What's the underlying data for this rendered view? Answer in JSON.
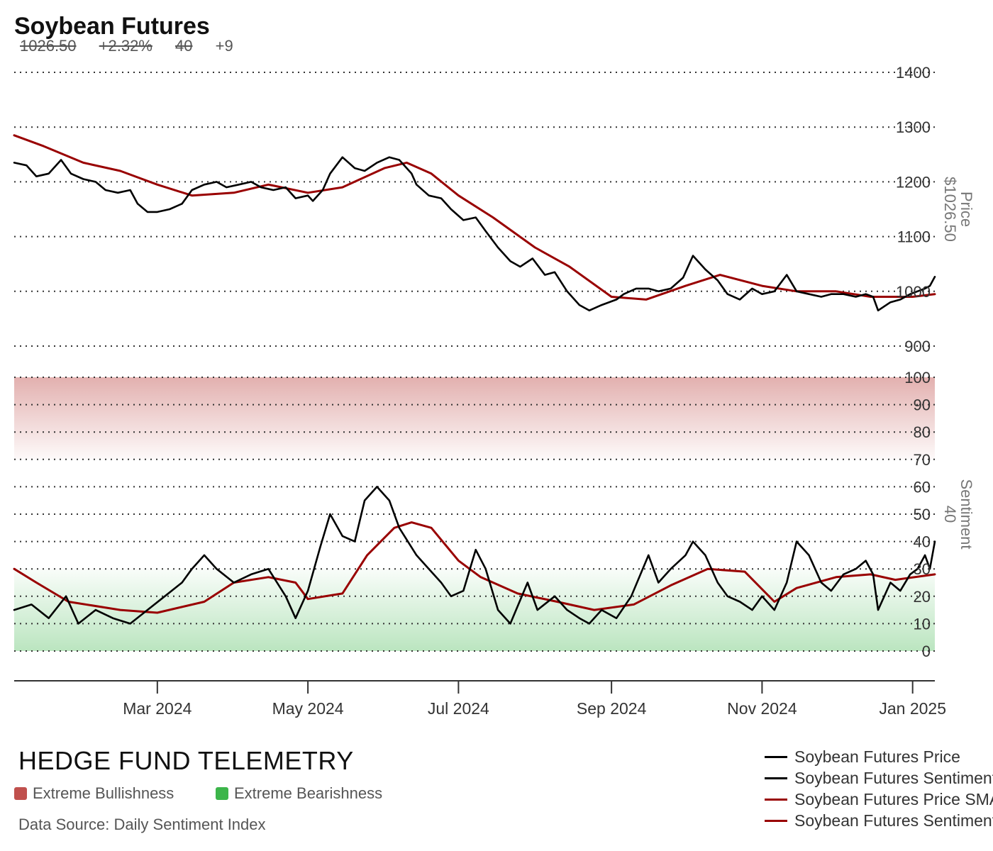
{
  "header": {
    "title": "Soybean Futures",
    "price": "1026.50",
    "change": "+2.32%",
    "sentiment": "40",
    "sentiment_change": "+9"
  },
  "footer": {
    "brand": "HEDGE FUND TELEMETRY",
    "bull_zone_label": "Extreme Bullishness",
    "bear_zone_label": "Extreme Bearishness",
    "source": "Data Source: Daily Sentiment Index"
  },
  "colors": {
    "price": "#000000",
    "sentiment": "#000000",
    "sma": "#990000",
    "bull_zone": "#c0504d",
    "bear_zone": "#3cb54a"
  },
  "chart_data": [
    {
      "type": "line",
      "panel": "price",
      "ylabel": "Price",
      "last_value_label": "$1026.50",
      "ylim": [
        900,
        1400
      ],
      "yticks": [
        900,
        1000,
        1100,
        1200,
        1300,
        1400
      ],
      "grid": true,
      "x_range": [
        "2024-01-03",
        "2025-01-10"
      ],
      "xticks": [
        {
          "date": "2024-03-01",
          "label": "Mar 2024"
        },
        {
          "date": "2024-05-01",
          "label": "May 2024"
        },
        {
          "date": "2024-07-01",
          "label": "Jul 2024"
        },
        {
          "date": "2024-09-01",
          "label": "Sep 2024"
        },
        {
          "date": "2024-11-01",
          "label": "Nov 2024"
        },
        {
          "date": "2025-01-01",
          "label": "Jan 2025"
        }
      ],
      "series": [
        {
          "name": "Soybean Futures Price",
          "color": "#000000",
          "points": [
            [
              "2024-01-03",
              1235
            ],
            [
              "2024-01-08",
              1230
            ],
            [
              "2024-01-12",
              1210
            ],
            [
              "2024-01-17",
              1215
            ],
            [
              "2024-01-22",
              1240
            ],
            [
              "2024-01-26",
              1215
            ],
            [
              "2024-01-31",
              1205
            ],
            [
              "2024-02-05",
              1200
            ],
            [
              "2024-02-09",
              1185
            ],
            [
              "2024-02-14",
              1180
            ],
            [
              "2024-02-19",
              1185
            ],
            [
              "2024-02-22",
              1160
            ],
            [
              "2024-02-26",
              1145
            ],
            [
              "2024-03-01",
              1145
            ],
            [
              "2024-03-06",
              1150
            ],
            [
              "2024-03-11",
              1160
            ],
            [
              "2024-03-15",
              1185
            ],
            [
              "2024-03-20",
              1195
            ],
            [
              "2024-03-25",
              1200
            ],
            [
              "2024-03-29",
              1190
            ],
            [
              "2024-04-03",
              1195
            ],
            [
              "2024-04-08",
              1200
            ],
            [
              "2024-04-12",
              1190
            ],
            [
              "2024-04-17",
              1185
            ],
            [
              "2024-04-22",
              1190
            ],
            [
              "2024-04-26",
              1170
            ],
            [
              "2024-05-01",
              1175
            ],
            [
              "2024-05-03",
              1165
            ],
            [
              "2024-05-07",
              1185
            ],
            [
              "2024-05-10",
              1215
            ],
            [
              "2024-05-15",
              1245
            ],
            [
              "2024-05-20",
              1225
            ],
            [
              "2024-05-24",
              1220
            ],
            [
              "2024-05-29",
              1235
            ],
            [
              "2024-06-03",
              1245
            ],
            [
              "2024-06-07",
              1240
            ],
            [
              "2024-06-12",
              1215
            ],
            [
              "2024-06-14",
              1195
            ],
            [
              "2024-06-19",
              1175
            ],
            [
              "2024-06-24",
              1170
            ],
            [
              "2024-06-28",
              1150
            ],
            [
              "2024-07-03",
              1130
            ],
            [
              "2024-07-08",
              1135
            ],
            [
              "2024-07-12",
              1110
            ],
            [
              "2024-07-17",
              1080
            ],
            [
              "2024-07-22",
              1055
            ],
            [
              "2024-07-26",
              1045
            ],
            [
              "2024-07-31",
              1060
            ],
            [
              "2024-08-05",
              1030
            ],
            [
              "2024-08-09",
              1035
            ],
            [
              "2024-08-14",
              1000
            ],
            [
              "2024-08-19",
              975
            ],
            [
              "2024-08-23",
              965
            ],
            [
              "2024-08-28",
              975
            ],
            [
              "2024-09-03",
              985
            ],
            [
              "2024-09-06",
              995
            ],
            [
              "2024-09-11",
              1005
            ],
            [
              "2024-09-16",
              1005
            ],
            [
              "2024-09-20",
              1000
            ],
            [
              "2024-09-25",
              1005
            ],
            [
              "2024-09-30",
              1025
            ],
            [
              "2024-10-04",
              1065
            ],
            [
              "2024-10-09",
              1040
            ],
            [
              "2024-10-14",
              1020
            ],
            [
              "2024-10-18",
              995
            ],
            [
              "2024-10-23",
              985
            ],
            [
              "2024-10-28",
              1005
            ],
            [
              "2024-11-01",
              995
            ],
            [
              "2024-11-06",
              1000
            ],
            [
              "2024-11-11",
              1030
            ],
            [
              "2024-11-15",
              1000
            ],
            [
              "2024-11-20",
              995
            ],
            [
              "2024-11-25",
              990
            ],
            [
              "2024-11-29",
              995
            ],
            [
              "2024-12-04",
              995
            ],
            [
              "2024-12-09",
              990
            ],
            [
              "2024-12-13",
              995
            ],
            [
              "2024-12-16",
              990
            ],
            [
              "2024-12-18",
              965
            ],
            [
              "2024-12-23",
              980
            ],
            [
              "2024-12-27",
              985
            ],
            [
              "2024-12-31",
              995
            ],
            [
              "2025-01-03",
              1000
            ],
            [
              "2025-01-06",
              1005
            ],
            [
              "2025-01-08",
              1010
            ],
            [
              "2025-01-10",
              1026.5
            ]
          ]
        },
        {
          "name": "Soybean Futures Price SMA",
          "color": "#990000",
          "points": [
            [
              "2024-01-03",
              1285
            ],
            [
              "2024-01-15",
              1265
            ],
            [
              "2024-01-31",
              1235
            ],
            [
              "2024-02-15",
              1220
            ],
            [
              "2024-03-01",
              1195
            ],
            [
              "2024-03-15",
              1175
            ],
            [
              "2024-04-01",
              1180
            ],
            [
              "2024-04-15",
              1195
            ],
            [
              "2024-05-01",
              1180
            ],
            [
              "2024-05-15",
              1190
            ],
            [
              "2024-06-01",
              1225
            ],
            [
              "2024-06-10",
              1235
            ],
            [
              "2024-06-20",
              1215
            ],
            [
              "2024-07-01",
              1175
            ],
            [
              "2024-07-15",
              1135
            ],
            [
              "2024-08-01",
              1080
            ],
            [
              "2024-08-15",
              1045
            ],
            [
              "2024-09-01",
              990
            ],
            [
              "2024-09-15",
              985
            ],
            [
              "2024-10-01",
              1010
            ],
            [
              "2024-10-15",
              1030
            ],
            [
              "2024-11-01",
              1010
            ],
            [
              "2024-11-15",
              1000
            ],
            [
              "2024-12-01",
              1000
            ],
            [
              "2024-12-15",
              990
            ],
            [
              "2025-01-01",
              990
            ],
            [
              "2025-01-10",
              995
            ]
          ]
        }
      ]
    },
    {
      "type": "line",
      "panel": "sentiment",
      "ylabel": "Sentiment",
      "last_value_label": "40",
      "ylim": [
        0,
        100
      ],
      "yticks": [
        0,
        10,
        20,
        30,
        40,
        50,
        60,
        70,
        80,
        90,
        100
      ],
      "grid": true,
      "bull_zone": [
        70,
        100
      ],
      "bear_zone": [
        0,
        30
      ],
      "series": [
        {
          "name": "Soybean Futures Sentiment",
          "color": "#000000",
          "points": [
            [
              "2024-01-03",
              15
            ],
            [
              "2024-01-10",
              17
            ],
            [
              "2024-01-17",
              12
            ],
            [
              "2024-01-24",
              20
            ],
            [
              "2024-01-29",
              10
            ],
            [
              "2024-02-05",
              15
            ],
            [
              "2024-02-12",
              12
            ],
            [
              "2024-02-19",
              10
            ],
            [
              "2024-02-26",
              15
            ],
            [
              "2024-03-04",
              20
            ],
            [
              "2024-03-11",
              25
            ],
            [
              "2024-03-15",
              30
            ],
            [
              "2024-03-20",
              35
            ],
            [
              "2024-03-25",
              30
            ],
            [
              "2024-04-01",
              25
            ],
            [
              "2024-04-08",
              28
            ],
            [
              "2024-04-15",
              30
            ],
            [
              "2024-04-22",
              20
            ],
            [
              "2024-04-26",
              12
            ],
            [
              "2024-05-01",
              22
            ],
            [
              "2024-05-06",
              38
            ],
            [
              "2024-05-10",
              50
            ],
            [
              "2024-05-15",
              42
            ],
            [
              "2024-05-20",
              40
            ],
            [
              "2024-05-24",
              55
            ],
            [
              "2024-05-29",
              60
            ],
            [
              "2024-06-03",
              55
            ],
            [
              "2024-06-07",
              45
            ],
            [
              "2024-06-14",
              35
            ],
            [
              "2024-06-19",
              30
            ],
            [
              "2024-06-24",
              25
            ],
            [
              "2024-06-28",
              20
            ],
            [
              "2024-07-03",
              22
            ],
            [
              "2024-07-08",
              37
            ],
            [
              "2024-07-12",
              30
            ],
            [
              "2024-07-17",
              15
            ],
            [
              "2024-07-22",
              10
            ],
            [
              "2024-07-29",
              25
            ],
            [
              "2024-08-02",
              15
            ],
            [
              "2024-08-09",
              20
            ],
            [
              "2024-08-14",
              15
            ],
            [
              "2024-08-19",
              12
            ],
            [
              "2024-08-23",
              10
            ],
            [
              "2024-08-28",
              15
            ],
            [
              "2024-09-03",
              12
            ],
            [
              "2024-09-09",
              20
            ],
            [
              "2024-09-16",
              35
            ],
            [
              "2024-09-20",
              25
            ],
            [
              "2024-09-25",
              30
            ],
            [
              "2024-10-01",
              35
            ],
            [
              "2024-10-04",
              40
            ],
            [
              "2024-10-09",
              35
            ],
            [
              "2024-10-14",
              25
            ],
            [
              "2024-10-18",
              20
            ],
            [
              "2024-10-23",
              18
            ],
            [
              "2024-10-28",
              15
            ],
            [
              "2024-11-01",
              20
            ],
            [
              "2024-11-06",
              15
            ],
            [
              "2024-11-11",
              25
            ],
            [
              "2024-11-15",
              40
            ],
            [
              "2024-11-20",
              35
            ],
            [
              "2024-11-25",
              25
            ],
            [
              "2024-11-29",
              22
            ],
            [
              "2024-12-04",
              28
            ],
            [
              "2024-12-09",
              30
            ],
            [
              "2024-12-13",
              33
            ],
            [
              "2024-12-16",
              28
            ],
            [
              "2024-12-18",
              15
            ],
            [
              "2024-12-23",
              25
            ],
            [
              "2024-12-27",
              22
            ],
            [
              "2024-12-31",
              28
            ],
            [
              "2025-01-03",
              30
            ],
            [
              "2025-01-06",
              35
            ],
            [
              "2025-01-08",
              30
            ],
            [
              "2025-01-10",
              40
            ]
          ]
        },
        {
          "name": "Soybean Futures Sentiment SMA",
          "color": "#990000",
          "points": [
            [
              "2024-01-03",
              30
            ],
            [
              "2024-01-12",
              25
            ],
            [
              "2024-01-25",
              18
            ],
            [
              "2024-02-15",
              15
            ],
            [
              "2024-03-01",
              14
            ],
            [
              "2024-03-20",
              18
            ],
            [
              "2024-04-01",
              25
            ],
            [
              "2024-04-15",
              27
            ],
            [
              "2024-04-26",
              25
            ],
            [
              "2024-05-01",
              19
            ],
            [
              "2024-05-15",
              21
            ],
            [
              "2024-05-25",
              35
            ],
            [
              "2024-06-05",
              45
            ],
            [
              "2024-06-12",
              47
            ],
            [
              "2024-06-20",
              45
            ],
            [
              "2024-07-01",
              33
            ],
            [
              "2024-07-10",
              27
            ],
            [
              "2024-07-25",
              21
            ],
            [
              "2024-08-10",
              18
            ],
            [
              "2024-08-25",
              15
            ],
            [
              "2024-09-10",
              17
            ],
            [
              "2024-09-25",
              24
            ],
            [
              "2024-10-10",
              30
            ],
            [
              "2024-10-25",
              29
            ],
            [
              "2024-11-06",
              18
            ],
            [
              "2024-11-15",
              23
            ],
            [
              "2024-12-01",
              27
            ],
            [
              "2024-12-15",
              28
            ],
            [
              "2024-12-25",
              26
            ],
            [
              "2025-01-10",
              28
            ]
          ]
        }
      ]
    }
  ]
}
